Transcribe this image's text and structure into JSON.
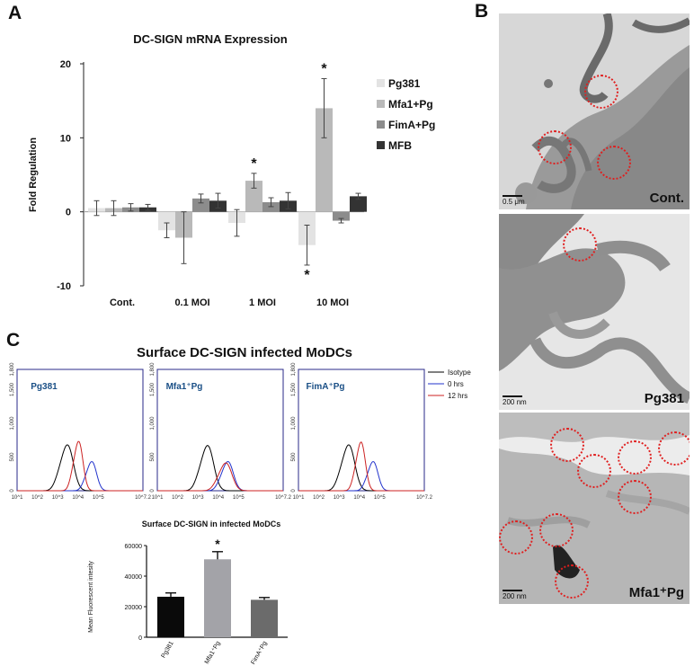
{
  "panel_labels": {
    "a": "A",
    "b": "B",
    "c": "C"
  },
  "colors": {
    "pg381": "#e3e3e3",
    "mfa1": "#b9b9b9",
    "fima": "#8c8c8c",
    "mfb": "#333333",
    "isotype": "#000000",
    "hrs0": "#2233cc",
    "hrs12": "#cc2222",
    "bar_pg381": "#0a0a0a",
    "bar_mfa": "#a3a3a8",
    "bar_fima": "#6b6b6b",
    "flow_label": "#1a4f86",
    "circle": "#e01e1e"
  },
  "chart_data": [
    {
      "id": "A",
      "type": "bar",
      "title": "DC-SIGN  mRNA Expression",
      "xlabel": "",
      "ylabel": "Fold Regulation",
      "ylim": [
        -10,
        20
      ],
      "yticks": [
        "20",
        "10",
        "0",
        "-10"
      ],
      "categories": [
        "Cont.",
        "0.1 MOI",
        "1 MOI",
        "10 MOI"
      ],
      "series": [
        {
          "name": "Pg381",
          "values": [
            0.5,
            -2.5,
            -1.5,
            -4.5
          ],
          "errors": [
            1.0,
            1.0,
            1.8,
            2.7
          ]
        },
        {
          "name": "Mfa1+Pg",
          "values": [
            0.5,
            -3.5,
            4.2,
            14.0
          ],
          "errors": [
            1.0,
            3.5,
            1.0,
            4.0
          ]
        },
        {
          "name": "FimA+Pg",
          "values": [
            0.6,
            1.8,
            1.3,
            -1.2
          ],
          "errors": [
            0.5,
            0.6,
            0.6,
            0.3
          ]
        },
        {
          "name": "MFB",
          "values": [
            0.6,
            1.5,
            1.5,
            2.1
          ],
          "errors": [
            0.4,
            1.0,
            1.1,
            0.4
          ]
        }
      ],
      "significance": [
        {
          "category": "1 MOI",
          "series": "Mfa1+Pg",
          "mark": "*"
        },
        {
          "category": "10 MOI",
          "series": "Mfa1+Pg",
          "mark": "*"
        },
        {
          "category": "10 MOI",
          "series": "Pg381",
          "mark": "*"
        }
      ],
      "legend": "right"
    },
    {
      "id": "C-flow",
      "type": "line",
      "title": "Surface DC-SIGN infected MoDCs",
      "xlabel": "",
      "ylabel": "",
      "x_scale": "log",
      "xlim": [
        1,
        7.2
      ],
      "xticks": [
        "10^1",
        "10^2",
        "10^3",
        "10^4",
        "10^5",
        "10^7.2"
      ],
      "ylim": [
        0,
        1800
      ],
      "yticks": [
        "1,800",
        "1,500",
        "1,000",
        "500",
        "0"
      ],
      "legend": [
        "Isotype",
        "0 hrs",
        "12 hrs"
      ],
      "panels": [
        {
          "name": "Pg381",
          "series": [
            {
              "name": "Isotype",
              "center": 3.5,
              "height": 660,
              "width": 0.28
            },
            {
              "name": "0 hrs",
              "center": 4.7,
              "height": 420,
              "width": 0.22
            },
            {
              "name": "12 hrs",
              "center": 4.05,
              "height": 710,
              "width": 0.2
            }
          ]
        },
        {
          "name": "Mfa1⁺Pg",
          "series": [
            {
              "name": "Isotype",
              "center": 3.5,
              "height": 650,
              "width": 0.28
            },
            {
              "name": "0 hrs",
              "center": 4.5,
              "height": 420,
              "width": 0.25
            },
            {
              "name": "12 hrs",
              "center": 4.4,
              "height": 400,
              "width": 0.28
            }
          ]
        },
        {
          "name": "FimA⁺Pg",
          "series": [
            {
              "name": "Isotype",
              "center": 3.5,
              "height": 660,
              "width": 0.28
            },
            {
              "name": "0 hrs",
              "center": 4.7,
              "height": 420,
              "width": 0.22
            },
            {
              "name": "12 hrs",
              "center": 4.1,
              "height": 700,
              "width": 0.2
            }
          ]
        }
      ]
    },
    {
      "id": "C-bar",
      "type": "bar",
      "title": "Surface DC-SIGN in infected MoDCs",
      "xlabel": "",
      "ylabel": "Mean Fluorescent intesity",
      "ylim": [
        0,
        60000
      ],
      "yticks": [
        "60000",
        "40000",
        "20000",
        "0"
      ],
      "categories": [
        "Pg381",
        "Mfa1⁺Pg",
        "FimA⁺Pg"
      ],
      "values": [
        26500,
        51000,
        24500
      ],
      "errors": [
        2500,
        5000,
        1500
      ],
      "significance": [
        {
          "category": "Mfa1⁺Pg",
          "mark": "*"
        }
      ]
    }
  ],
  "em_panels": [
    {
      "label": "Cont.",
      "scale": "0.5 μm"
    },
    {
      "label": "Pg381",
      "scale": "200 nm"
    },
    {
      "label": "Mfa1⁺Pg",
      "scale": "200 nm"
    }
  ]
}
